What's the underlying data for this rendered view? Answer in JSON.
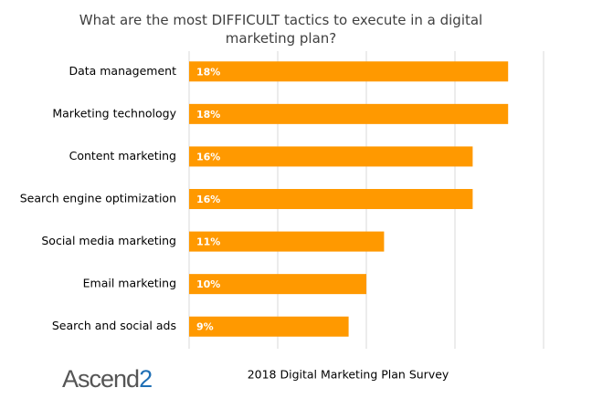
{
  "chart_data": {
    "type": "bar",
    "orientation": "horizontal",
    "title": "What are the most DIFFICULT tactics to execute in a digital marketing plan?",
    "categories": [
      "Data management",
      "Marketing technology",
      "Content marketing",
      "Search engine optimization",
      "Social media marketing",
      "Email marketing",
      "Search and social ads"
    ],
    "values": [
      18,
      18,
      16,
      16,
      11,
      10,
      9
    ],
    "value_labels": [
      "18%",
      "18%",
      "16%",
      "16%",
      "11%",
      "10%",
      "9%"
    ],
    "color": "#ff9900",
    "xlim": [
      0,
      20
    ],
    "xticks": [
      0,
      5,
      10,
      15,
      20
    ],
    "grid": true
  },
  "footer": {
    "logo": [
      "Ascend",
      "2"
    ],
    "source": "2018 Digital Marketing Plan Survey"
  }
}
